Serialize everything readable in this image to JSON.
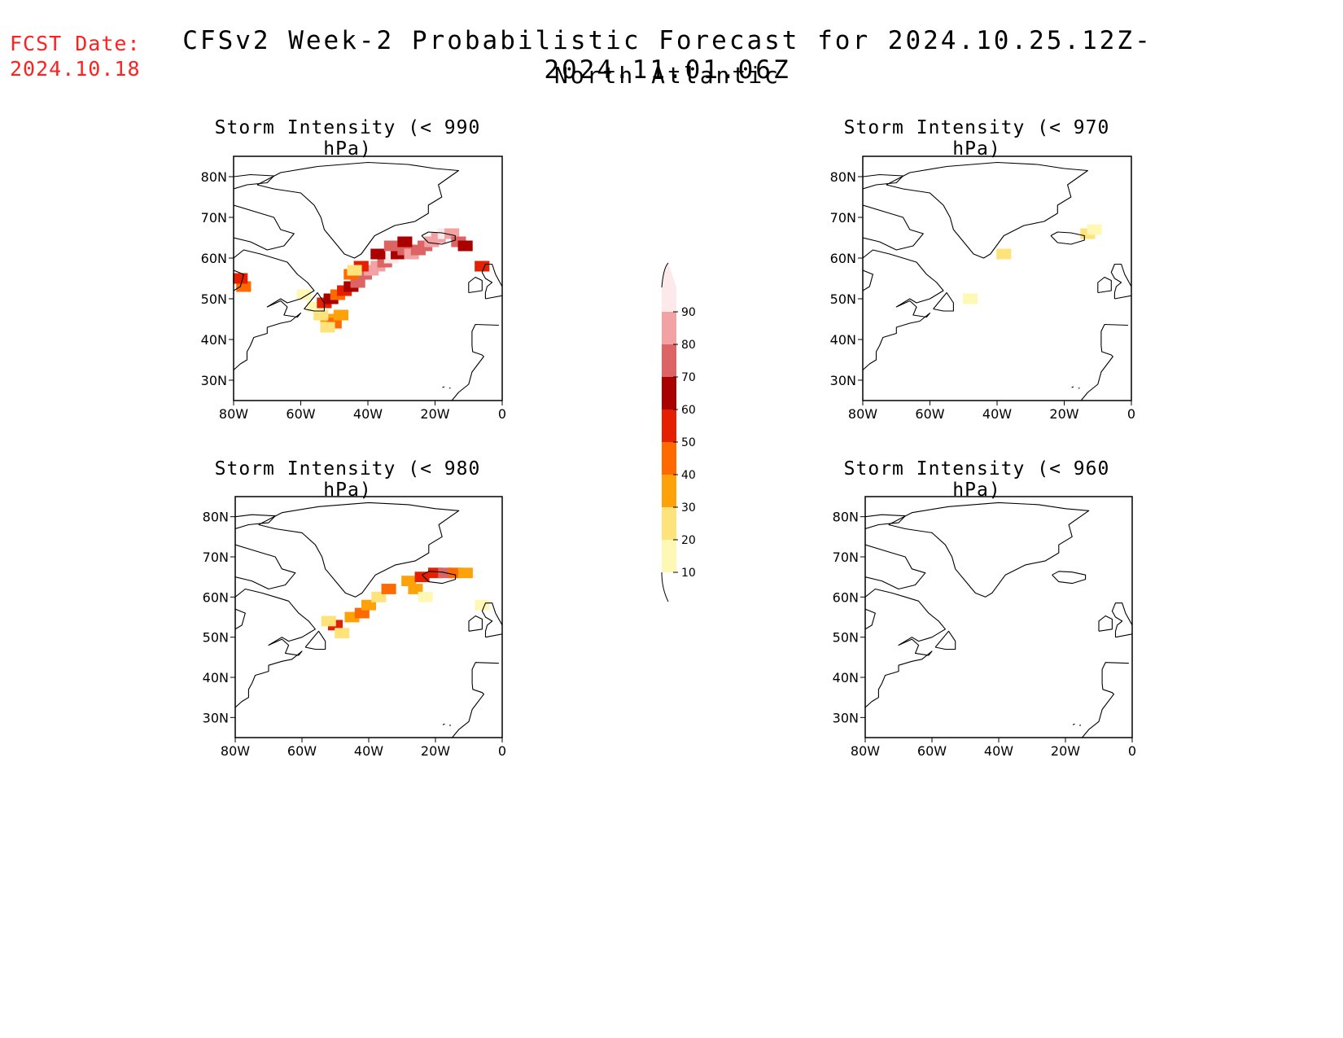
{
  "header": {
    "fcst_label": "FCST Date:",
    "fcst_date": "2024.10.18",
    "title": "CFSv2 Week-2 Probabilistic Forecast for 2024.10.25.12Z-2024.11.01.06Z",
    "subtitle": "North Atlantic"
  },
  "map": {
    "region": "North Atlantic",
    "lon_range": [
      -80,
      0
    ],
    "lat_range": [
      25,
      85
    ],
    "lat_ticks": [
      "80N",
      "70N",
      "60N",
      "50N",
      "40N",
      "30N"
    ],
    "lon_ticks": [
      "80W",
      "60W",
      "40W",
      "20W",
      "0"
    ]
  },
  "panels": [
    {
      "title": "Storm Intensity (< 990 hPa)",
      "cells": [
        {
          "lon": -52,
          "lat": 45,
          "p": 35
        },
        {
          "lon": -50,
          "lat": 44,
          "p": 40
        },
        {
          "lon": -54,
          "lat": 46,
          "p": 25
        },
        {
          "lon": -48,
          "lat": 46,
          "p": 30
        },
        {
          "lon": -52,
          "lat": 43,
          "p": 20
        },
        {
          "lon": -56,
          "lat": 48,
          "p": 15
        },
        {
          "lon": -53,
          "lat": 49,
          "p": 55
        },
        {
          "lon": -51,
          "lat": 50,
          "p": 60
        },
        {
          "lon": -49,
          "lat": 51,
          "p": 45
        },
        {
          "lon": -47,
          "lat": 52,
          "p": 55
        },
        {
          "lon": -45,
          "lat": 53,
          "p": 65
        },
        {
          "lon": -43,
          "lat": 54,
          "p": 75
        },
        {
          "lon": -41,
          "lat": 56,
          "p": 70
        },
        {
          "lon": -39,
          "lat": 57,
          "p": 80
        },
        {
          "lon": -37,
          "lat": 58,
          "p": 85
        },
        {
          "lon": -35,
          "lat": 59,
          "p": 75
        },
        {
          "lon": -33,
          "lat": 60,
          "p": 90
        },
        {
          "lon": -31,
          "lat": 61,
          "p": 65
        },
        {
          "lon": -29,
          "lat": 62,
          "p": 70
        },
        {
          "lon": -27,
          "lat": 61,
          "p": 85
        },
        {
          "lon": -25,
          "lat": 62,
          "p": 75
        },
        {
          "lon": -23,
          "lat": 63,
          "p": 70
        },
        {
          "lon": -21,
          "lat": 64,
          "p": 80
        },
        {
          "lon": -19,
          "lat": 65,
          "p": 85
        },
        {
          "lon": -17,
          "lat": 66,
          "p": 90
        },
        {
          "lon": -15,
          "lat": 66,
          "p": 85
        },
        {
          "lon": -13,
          "lat": 64,
          "p": 70
        },
        {
          "lon": -11,
          "lat": 63,
          "p": 60
        },
        {
          "lon": -6,
          "lat": 58,
          "p": 55
        },
        {
          "lon": -45,
          "lat": 56,
          "p": 40
        },
        {
          "lon": -42,
          "lat": 58,
          "p": 55
        },
        {
          "lon": -37,
          "lat": 61,
          "p": 60
        },
        {
          "lon": -33,
          "lat": 63,
          "p": 70
        },
        {
          "lon": -29,
          "lat": 64,
          "p": 65
        },
        {
          "lon": -77,
          "lat": 53,
          "p": 40
        },
        {
          "lon": -78,
          "lat": 55,
          "p": 55
        },
        {
          "lon": -59,
          "lat": 51,
          "p": 15
        },
        {
          "lon": -44,
          "lat": 57,
          "p": 20
        }
      ]
    },
    {
      "title": "Storm Intensity (< 970 hPa)",
      "cells": [
        {
          "lon": -48,
          "lat": 50,
          "p": 15
        },
        {
          "lon": -38,
          "lat": 61,
          "p": 25
        },
        {
          "lon": -13,
          "lat": 66,
          "p": 20
        },
        {
          "lon": -11,
          "lat": 67,
          "p": 15
        }
      ]
    },
    {
      "title": "Storm Intensity (< 980 hPa)",
      "cells": [
        {
          "lon": -50,
          "lat": 53,
          "p": 55
        },
        {
          "lon": -48,
          "lat": 51,
          "p": 25
        },
        {
          "lon": -52,
          "lat": 54,
          "p": 20
        },
        {
          "lon": -45,
          "lat": 55,
          "p": 35
        },
        {
          "lon": -42,
          "lat": 56,
          "p": 40
        },
        {
          "lon": -40,
          "lat": 58,
          "p": 30
        },
        {
          "lon": -37,
          "lat": 60,
          "p": 25
        },
        {
          "lon": -34,
          "lat": 62,
          "p": 45
        },
        {
          "lon": -28,
          "lat": 64,
          "p": 30
        },
        {
          "lon": -26,
          "lat": 62,
          "p": 35
        },
        {
          "lon": -24,
          "lat": 65,
          "p": 55
        },
        {
          "lon": -20,
          "lat": 66,
          "p": 50
        },
        {
          "lon": -17,
          "lat": 66,
          "p": 70
        },
        {
          "lon": -14,
          "lat": 66,
          "p": 45
        },
        {
          "lon": -11,
          "lat": 66,
          "p": 35
        },
        {
          "lon": -23,
          "lat": 60,
          "p": 15
        },
        {
          "lon": -6,
          "lat": 58,
          "p": 15
        }
      ]
    },
    {
      "title": "Storm Intensity (< 960 hPa)",
      "cells": []
    }
  ],
  "colorbar": {
    "levels": [
      "10",
      "20",
      "30",
      "40",
      "50",
      "60",
      "70",
      "80",
      "90"
    ],
    "colors": [
      "#fff8b4",
      "#fde37a",
      "#fea20a",
      "#ff6a00",
      "#e42000",
      "#a90000",
      "#dc6464",
      "#f2a2a2",
      "#fde8ea"
    ]
  }
}
